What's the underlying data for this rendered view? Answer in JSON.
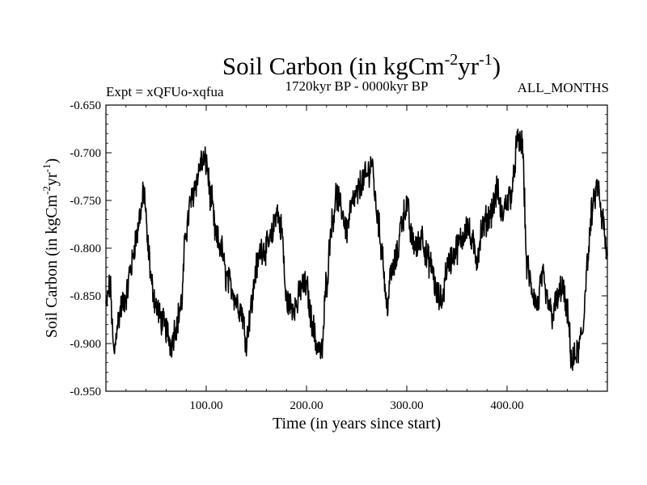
{
  "chart_data": {
    "type": "line",
    "title": "Soil Carbon (in kgCm",
    "title_units": {
      "exp1": "-2",
      "mid": "yr",
      "exp2": "-1",
      "close": ")"
    },
    "subtitle_left": "Expt = xQFUo-xqfua",
    "subtitle_center": "1720kyr BP - 0000kyr BP",
    "subtitle_right": "ALL_MONTHS",
    "xlabel": "Time (in years since start)",
    "ylabel": "Soil Carbon (in kgCm",
    "ylabel_units": {
      "exp1": "-2",
      "mid": "yr",
      "exp2": "-1",
      "close": ")"
    },
    "xlim": [
      0,
      500
    ],
    "ylim": [
      -0.95,
      -0.65
    ],
    "x_ticks": [
      100,
      200,
      300,
      400
    ],
    "x_tick_labels": [
      "100.00",
      "200.00",
      "300.00",
      "400.00"
    ],
    "y_ticks": [
      -0.65,
      -0.7,
      -0.75,
      -0.8,
      -0.85,
      -0.9,
      -0.95
    ],
    "y_tick_labels": [
      "-0.650",
      "-0.700",
      "-0.750",
      "-0.800",
      "-0.850",
      "-0.900",
      "-0.950"
    ],
    "grid": false,
    "series": [
      {
        "name": "soil-carbon",
        "color": "#000000",
        "x": [
          0,
          4,
          8,
          12,
          16,
          20,
          25,
          30,
          35,
          38,
          42,
          46,
          50,
          55,
          60,
          65,
          70,
          75,
          80,
          85,
          90,
          95,
          100,
          105,
          110,
          115,
          120,
          125,
          130,
          135,
          140,
          145,
          150,
          155,
          160,
          165,
          170,
          175,
          180,
          185,
          190,
          195,
          200,
          205,
          210,
          215,
          220,
          225,
          230,
          235,
          240,
          245,
          250,
          255,
          260,
          265,
          270,
          275,
          280,
          285,
          290,
          295,
          300,
          305,
          310,
          315,
          320,
          325,
          330,
          335,
          340,
          345,
          350,
          355,
          360,
          365,
          370,
          375,
          380,
          385,
          390,
          395,
          400,
          405,
          410,
          415,
          420,
          425,
          430,
          435,
          440,
          445,
          450,
          455,
          460,
          465,
          470,
          475,
          480,
          485,
          490,
          495,
          500
        ],
        "y": [
          -0.86,
          -0.84,
          -0.91,
          -0.875,
          -0.86,
          -0.85,
          -0.82,
          -0.79,
          -0.76,
          -0.74,
          -0.8,
          -0.84,
          -0.86,
          -0.875,
          -0.885,
          -0.9,
          -0.88,
          -0.86,
          -0.78,
          -0.75,
          -0.73,
          -0.71,
          -0.71,
          -0.75,
          -0.79,
          -0.8,
          -0.83,
          -0.84,
          -0.855,
          -0.865,
          -0.895,
          -0.86,
          -0.82,
          -0.8,
          -0.8,
          -0.79,
          -0.76,
          -0.78,
          -0.855,
          -0.86,
          -0.86,
          -0.84,
          -0.84,
          -0.875,
          -0.9,
          -0.91,
          -0.835,
          -0.775,
          -0.745,
          -0.76,
          -0.78,
          -0.755,
          -0.745,
          -0.73,
          -0.725,
          -0.71,
          -0.76,
          -0.8,
          -0.86,
          -0.825,
          -0.81,
          -0.77,
          -0.755,
          -0.79,
          -0.8,
          -0.785,
          -0.81,
          -0.82,
          -0.85,
          -0.855,
          -0.82,
          -0.81,
          -0.8,
          -0.79,
          -0.775,
          -0.795,
          -0.81,
          -0.78,
          -0.77,
          -0.76,
          -0.74,
          -0.765,
          -0.75,
          -0.74,
          -0.69,
          -0.69,
          -0.82,
          -0.845,
          -0.86,
          -0.83,
          -0.855,
          -0.87,
          -0.855,
          -0.84,
          -0.87,
          -0.92,
          -0.91,
          -0.89,
          -0.815,
          -0.76,
          -0.735,
          -0.77,
          -0.81
        ]
      }
    ]
  }
}
